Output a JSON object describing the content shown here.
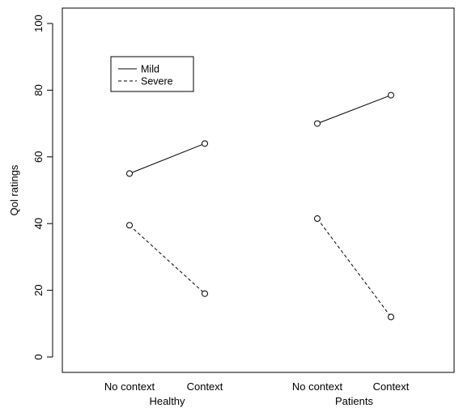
{
  "chart_data": {
    "type": "line",
    "title": "",
    "xlabel": "",
    "ylabel": "Qol ratings",
    "ylim": [
      0,
      100
    ],
    "yticks": [
      0,
      20,
      40,
      60,
      80,
      100
    ],
    "grid": false,
    "legend_position": "top-left",
    "groups": [
      {
        "label": "Healthy",
        "categories": [
          "No context",
          "Context"
        ]
      },
      {
        "label": "Patients",
        "categories": [
          "No context",
          "Context"
        ]
      }
    ],
    "series": [
      {
        "name": "Mild",
        "line_style": "solid",
        "values": [
          [
            55,
            64
          ],
          [
            70,
            78.5
          ]
        ]
      },
      {
        "name": "Severe",
        "line_style": "dashed",
        "values": [
          [
            39.5,
            19
          ],
          [
            41.5,
            12
          ]
        ]
      }
    ]
  }
}
